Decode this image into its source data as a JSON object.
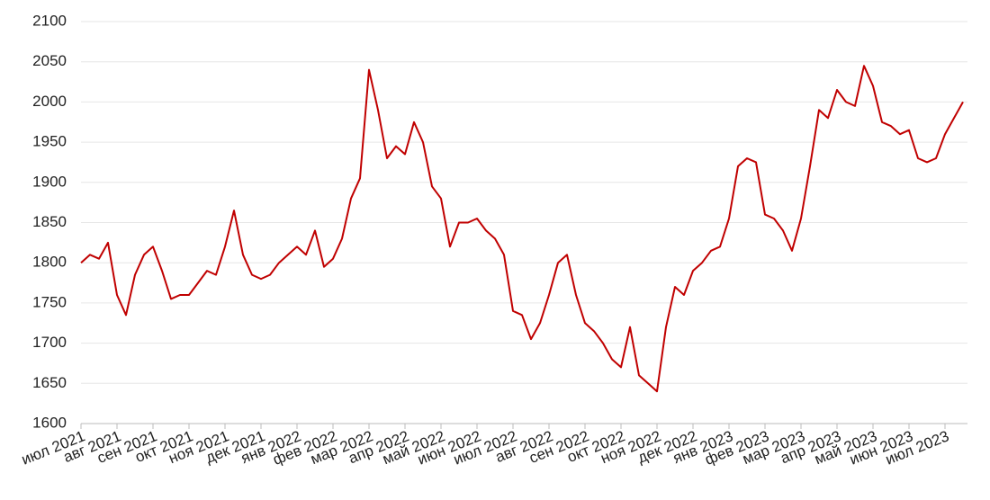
{
  "chart_data": {
    "type": "line",
    "categories": [
      "июл 2021",
      null,
      null,
      null,
      "авг 2021",
      null,
      null,
      null,
      "сен 2021",
      null,
      null,
      null,
      "окт 2021",
      null,
      null,
      null,
      "ноя 2021",
      null,
      null,
      null,
      "дек 2021",
      null,
      null,
      null,
      "янв 2022",
      null,
      null,
      null,
      "фев 2022",
      null,
      null,
      null,
      "мар 2022",
      null,
      null,
      null,
      "апр 2022",
      null,
      null,
      null,
      "май 2022",
      null,
      null,
      null,
      "июн 2022",
      null,
      null,
      null,
      "июл 2022",
      null,
      null,
      null,
      "авг 2022",
      null,
      null,
      null,
      "сен 2022",
      null,
      null,
      null,
      "окт 2022",
      null,
      null,
      null,
      "ноя 2022",
      null,
      null,
      null,
      "дек 2022",
      null,
      null,
      null,
      "янв 2023",
      null,
      null,
      null,
      "фев 2023",
      null,
      null,
      null,
      "мар 2023",
      null,
      null,
      null,
      "апр 2023",
      null,
      null,
      null,
      "май 2023",
      null,
      null,
      null,
      "июн 2023",
      null,
      null,
      null,
      "июл 2023",
      null,
      null
    ],
    "series": [
      {
        "color": "#c00000",
        "values": [
          1800,
          1810,
          1805,
          1825,
          1760,
          1735,
          1785,
          1810,
          1820,
          1790,
          1755,
          1760,
          1760,
          1775,
          1790,
          1785,
          1820,
          1865,
          1810,
          1785,
          1780,
          1785,
          1800,
          1810,
          1820,
          1810,
          1840,
          1795,
          1805,
          1830,
          1880,
          1905,
          2040,
          1990,
          1930,
          1945,
          1935,
          1975,
          1950,
          1895,
          1880,
          1820,
          1850,
          1850,
          1855,
          1840,
          1830,
          1810,
          1740,
          1735,
          1705,
          1725,
          1760,
          1800,
          1810,
          1760,
          1725,
          1715,
          1700,
          1680,
          1670,
          1720,
          1660,
          1650,
          1640,
          1720,
          1770,
          1760,
          1790,
          1800,
          1815,
          1820,
          1855,
          1920,
          1930,
          1925,
          1860,
          1855,
          1840,
          1815,
          1855,
          1920,
          1990,
          1980,
          2015,
          2000,
          1995,
          2045,
          2020,
          1975,
          1970,
          1960,
          1965,
          1930,
          1925,
          1930,
          1960,
          1980,
          2000
        ]
      }
    ],
    "ylim": [
      1600,
      2100
    ],
    "yticks": [
      1600,
      1650,
      1700,
      1750,
      1800,
      1850,
      1900,
      1950,
      2000,
      2050,
      2100
    ],
    "grid": true
  }
}
